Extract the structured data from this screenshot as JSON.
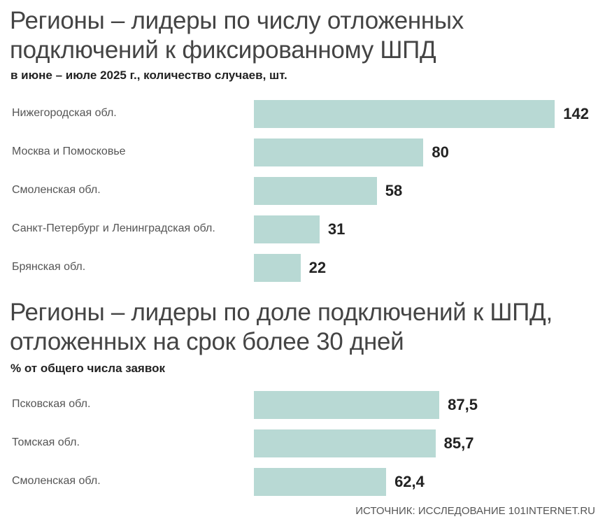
{
  "colors": {
    "bar": "#b8d9d4"
  },
  "source": "ИСТОЧНИК: ИССЛЕДОВАНИЕ 101INTERNET.RU",
  "chart_data": [
    {
      "type": "bar",
      "orientation": "horizontal",
      "title_lines": [
        "Регионы – лидеры по числу отложенных",
        "подключений к фиксированному ШПД"
      ],
      "subtitle": "в июне – июле 2025 г., количество случаев, шт.",
      "categories": [
        "Нижегородская обл.",
        "Москва и Помосковье",
        "Смоленская обл.",
        "Санкт-Петербург и Ленинградская обл.",
        "Брянская обл."
      ],
      "values": [
        142,
        80,
        58,
        31,
        22
      ],
      "value_labels": [
        "142",
        "80",
        "58",
        "31",
        "22"
      ],
      "grid": false
    },
    {
      "type": "bar",
      "orientation": "horizontal",
      "title_lines": [
        "Регионы – лидеры по доле подключений к ШПД,",
        "отложенных на срок более 30 дней"
      ],
      "subtitle": "% от общего числа заявок",
      "categories": [
        "Псковская обл.",
        "Томская обл.",
        "Смоленская обл."
      ],
      "values": [
        87.5,
        85.7,
        62.4
      ],
      "value_labels": [
        "87,5",
        "85,7",
        "62,4"
      ],
      "grid": false
    }
  ]
}
